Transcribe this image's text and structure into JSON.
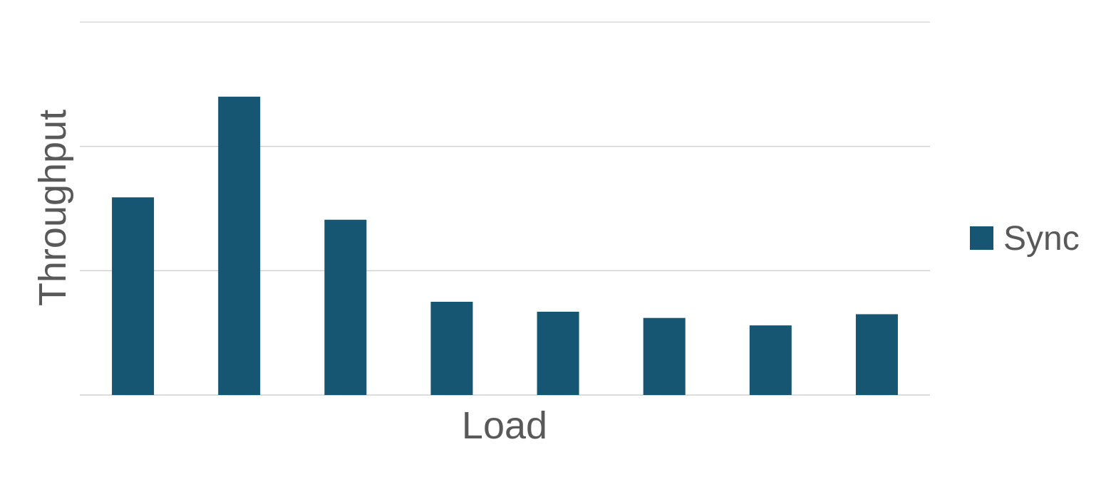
{
  "chart_data": {
    "type": "bar",
    "title": "",
    "xlabel": "Load",
    "ylabel": "Throughput",
    "categories": [
      "",
      "",
      "",
      "",
      "",
      "",
      "",
      ""
    ],
    "series": [
      {
        "name": "Sync",
        "values": [
          1.59,
          2.4,
          1.41,
          0.75,
          0.67,
          0.62,
          0.56,
          0.65
        ]
      }
    ],
    "ylim": [
      0,
      3
    ],
    "yticks": [
      0,
      1,
      2,
      3
    ],
    "grid": true,
    "legend": "right",
    "colors": {
      "series": "#175673",
      "grid": "#d0d0d0",
      "text": "#595959"
    }
  }
}
